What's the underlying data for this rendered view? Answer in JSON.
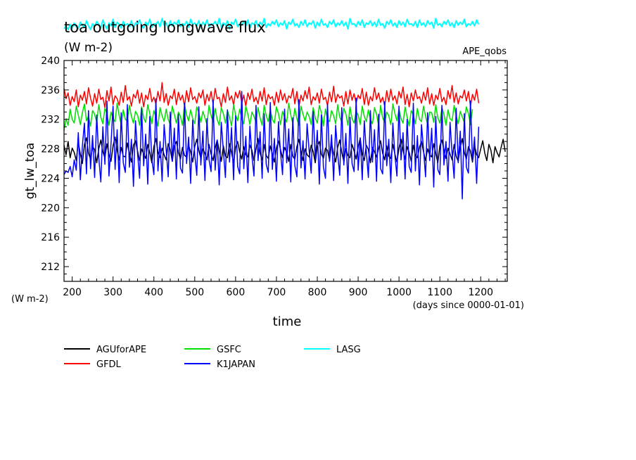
{
  "chart_data": {
    "type": "line",
    "title": "toa outgoing longwave flux",
    "units": "(W m-2)",
    "experiment": "APE_qobs",
    "ylabel": "gt_lw_toa",
    "xlabel": "time",
    "x_units": "(days since 0000-01-01)",
    "y_units_left": "(W m-2)",
    "xlim": [
      180,
      1265
    ],
    "ylim": [
      210,
      240
    ],
    "x_ticks": [
      200,
      300,
      400,
      500,
      600,
      700,
      800,
      900,
      1000,
      1100,
      1200
    ],
    "y_ticks": [
      212,
      216,
      220,
      224,
      228,
      232,
      236,
      240
    ],
    "grid": false,
    "legend_position": "below",
    "series": [
      {
        "name": "AGUforAPE",
        "color": "#000000",
        "x_start": 180,
        "x_end": 1265,
        "x_step": 5,
        "values": [
          228.5,
          227.2,
          229.0,
          226.8,
          228.1,
          227.5,
          226.4,
          228.9,
          227.3,
          226.0,
          228.6,
          229.5,
          227.4,
          226.6,
          228.3,
          227.9,
          226.1,
          228.0,
          229.2,
          227.6,
          226.8,
          228.7,
          227.2,
          226.3,
          228.4,
          229.6,
          227.8,
          226.5,
          228.2,
          227.0,
          226.9,
          228.8,
          227.4,
          226.2,
          228.5,
          229.1,
          227.7,
          226.4,
          228.0,
          227.3,
          226.7,
          228.6,
          227.5,
          226.1,
          228.3,
          229.4,
          227.6,
          226.8,
          228.1,
          227.2,
          226.5,
          228.7,
          227.9,
          226.3,
          228.4,
          229.0,
          227.5,
          226.6,
          228.2,
          227.1,
          226.9,
          228.5,
          227.6,
          226.2,
          228.3,
          229.3,
          227.8,
          226.7,
          228.0,
          227.4,
          226.5,
          228.6,
          227.3,
          226.4,
          228.1,
          229.2,
          227.7,
          226.3,
          228.4,
          227.0,
          226.8,
          228.7,
          227.5,
          226.1,
          228.2,
          229.0,
          227.6,
          226.6,
          228.3,
          227.2,
          226.9,
          228.5,
          227.8,
          226.4,
          228.0,
          229.4,
          227.4,
          226.5,
          228.6,
          227.1,
          226.7,
          228.4,
          227.3,
          226.2,
          228.1,
          229.1,
          227.9,
          226.8,
          228.2,
          227.5,
          226.3,
          228.6,
          227.0,
          226.6,
          228.3,
          229.3,
          227.7,
          226.4,
          228.0,
          227.2,
          226.9,
          228.5,
          227.6,
          226.1,
          228.4,
          229.0,
          227.3,
          226.7,
          228.1,
          227.8,
          226.5,
          228.7,
          227.4,
          226.2,
          228.2,
          229.2,
          227.5,
          226.3,
          228.0,
          227.1,
          226.8,
          228.6,
          227.7,
          226.6,
          228.3,
          229.4,
          227.2,
          226.4,
          228.5,
          227.9,
          226.1,
          228.2,
          227.6,
          226.9,
          228.0,
          229.1,
          227.4,
          226.5,
          228.4,
          227.0,
          226.7,
          228.6,
          227.3,
          226.2,
          228.1,
          229.3,
          227.8,
          226.6,
          228.3,
          227.5,
          226.3,
          228.5,
          227.1,
          226.8,
          228.2,
          229.0,
          227.6,
          226.4,
          228.0,
          227.2,
          226.9,
          228.7,
          227.4,
          226.1,
          228.4,
          229.2,
          227.9,
          226.7,
          228.1,
          227.3,
          226.5,
          228.6,
          227.0,
          226.3,
          228.2,
          229.4,
          227.5,
          226.6,
          228.3,
          227.7,
          226.2,
          228.5,
          227.2,
          226.8,
          228.0,
          229.1,
          227.4,
          226.4,
          228.6,
          227.8,
          226.1,
          228.3,
          227.5,
          226.9,
          228.2,
          229.3,
          227.6
        ]
      },
      {
        "name": "GFDL",
        "color": "#ff0000",
        "x_start": 180,
        "x_end": 1265,
        "x_step": 5,
        "values": [
          236.2,
          234.8,
          235.6,
          233.9,
          235.1,
          234.4,
          236.0,
          233.7,
          235.3,
          234.6,
          235.8,
          234.1,
          236.3,
          234.9,
          233.8,
          235.5,
          234.2,
          236.1,
          234.7,
          235.0,
          233.6,
          235.9,
          234.5,
          236.4,
          234.0,
          235.2,
          234.8,
          233.9,
          235.7,
          234.3,
          236.6,
          234.6,
          235.1,
          233.8,
          235.4,
          234.9,
          236.0,
          234.2,
          235.6,
          233.7,
          235.3,
          234.7,
          236.2,
          234.4,
          235.0,
          234.1,
          235.8,
          234.5,
          237.0,
          234.3,
          235.5,
          233.9,
          235.2,
          234.8,
          236.1,
          234.0,
          235.7,
          234.6,
          235.3,
          233.8,
          235.9,
          234.4,
          236.3,
          234.7,
          235.1,
          234.2,
          235.6,
          234.9,
          236.0,
          233.9,
          235.4,
          234.5,
          235.8,
          234.1,
          236.2,
          234.8,
          235.0,
          233.7,
          235.5,
          234.3,
          236.4,
          234.6,
          235.2,
          234.0,
          235.7,
          234.9,
          235.9,
          234.2,
          235.3,
          233.8,
          235.6,
          234.7,
          236.1,
          234.4,
          235.0,
          234.1,
          235.8,
          234.5,
          236.3,
          234.0,
          235.4,
          234.8,
          235.1,
          233.9,
          235.7,
          234.3,
          236.0,
          234.6,
          235.5,
          234.2,
          235.2,
          234.9,
          236.2,
          234.1,
          235.8,
          233.7,
          235.3,
          234.5,
          235.9,
          234.8,
          236.4,
          234.0,
          235.1,
          234.6,
          235.6,
          234.2,
          236.1,
          234.7,
          235.0,
          233.9,
          235.7,
          234.4,
          236.5,
          234.3,
          235.4,
          234.9,
          235.2,
          233.8,
          235.8,
          234.1,
          236.0,
          234.6,
          235.5,
          234.2,
          235.3,
          234.8,
          236.2,
          234.0,
          235.7,
          233.9,
          235.1,
          234.5,
          236.3,
          234.7,
          235.6,
          234.3,
          235.0,
          233.8,
          235.9,
          234.4,
          236.1,
          234.6,
          235.2,
          234.1,
          235.8,
          234.9,
          236.4,
          234.0,
          235.4,
          233.7,
          235.6,
          234.5,
          236.0,
          234.8,
          235.1,
          234.2,
          235.7,
          234.6,
          236.3,
          234.1,
          235.5,
          233.9,
          235.3,
          234.7,
          236.2,
          234.4,
          235.0,
          234.0,
          235.9,
          234.8,
          236.6,
          234.3,
          235.6,
          234.1,
          235.2,
          234.9,
          236.0,
          234.5,
          235.8,
          233.8,
          235.4,
          234.6,
          236.1,
          234.2
        ]
      },
      {
        "name": "GSFC",
        "color": "#00e000",
        "x_start": 180,
        "x_end": 1265,
        "x_step": 5,
        "values": [
          230.5,
          232.1,
          231.2,
          233.4,
          232.0,
          231.5,
          233.8,
          232.6,
          231.3,
          232.9,
          234.1,
          231.8,
          232.4,
          231.1,
          233.2,
          232.7,
          231.6,
          234.0,
          232.3,
          231.4,
          233.5,
          232.8,
          231.2,
          233.0,
          232.1,
          231.7,
          234.2,
          232.5,
          231.3,
          233.3,
          232.0,
          231.8,
          233.9,
          232.4,
          231.5,
          233.1,
          232.6,
          231.2,
          233.7,
          232.2,
          231.6,
          234.0,
          232.8,
          231.4,
          233.2,
          232.3,
          231.1,
          233.6,
          232.5,
          231.7,
          233.4,
          232.0,
          231.3,
          233.8,
          232.7,
          231.5,
          233.0,
          232.4,
          231.2,
          234.1,
          232.6,
          231.8,
          233.3,
          232.1,
          231.4,
          233.7,
          232.9,
          231.6,
          233.1,
          232.2,
          231.3,
          233.9,
          232.5,
          231.7,
          233.5,
          232.0,
          231.2,
          233.6,
          232.8,
          231.5,
          233.2,
          232.3,
          231.1,
          234.0,
          232.6,
          231.8,
          233.4,
          232.1,
          231.4,
          233.8,
          232.7,
          231.3,
          233.0,
          232.4,
          231.6,
          233.6,
          232.2,
          231.2,
          233.9,
          232.5,
          231.7,
          233.3,
          232.0,
          231.5,
          233.7,
          232.8,
          231.3,
          233.1,
          232.3,
          231.6,
          234.2,
          232.6,
          231.4,
          233.5,
          232.1,
          231.2,
          233.8,
          232.7,
          231.8,
          233.0,
          232.4,
          231.3,
          233.6,
          232.2,
          231.5,
          233.9,
          232.9,
          231.1,
          233.4,
          232.0,
          231.7,
          233.2,
          232.5,
          231.4,
          234.0,
          232.3,
          231.6,
          233.5,
          232.8,
          231.2,
          233.7,
          232.1,
          231.5,
          233.1,
          232.6,
          231.3,
          233.8,
          232.4,
          231.7,
          233.3,
          232.0,
          231.4,
          233.6,
          232.7,
          231.2,
          233.9,
          232.2,
          231.6,
          233.0,
          232.5,
          231.3,
          234.1,
          232.8,
          231.8,
          233.4,
          232.1,
          231.5,
          233.7,
          232.3,
          231.1,
          233.2,
          232.6,
          231.4,
          233.5,
          232.0,
          231.7,
          233.8,
          232.4,
          231.3,
          233.0,
          232.9,
          231.6,
          234.0,
          232.2,
          231.5,
          233.6,
          232.7,
          231.2,
          233.3,
          232.1,
          231.8,
          233.9,
          232.5,
          231.4,
          233.1,
          232.3,
          231.6,
          233.7,
          232.8,
          231.3,
          233.4
        ]
      },
      {
        "name": "K1JAPAN",
        "color": "#0000ff",
        "x_start": 180,
        "x_end": 1265,
        "x_step": 5,
        "values": [
          224.5,
          225.0,
          224.8,
          225.6,
          224.2,
          226.5,
          225.1,
          230.2,
          223.8,
          228.4,
          231.5,
          224.6,
          233.2,
          225.3,
          229.8,
          224.1,
          232.6,
          226.8,
          223.5,
          231.0,
          225.9,
          234.5,
          224.3,
          228.7,
          233.8,
          225.2,
          230.6,
          223.4,
          232.9,
          226.1,
          224.8,
          234.0,
          225.5,
          229.3,
          222.9,
          231.8,
          227.4,
          224.0,
          233.5,
          225.7,
          230.0,
          223.2,
          232.4,
          226.6,
          224.5,
          234.8,
          225.0,
          229.0,
          223.6,
          231.3,
          227.9,
          224.2,
          233.0,
          226.3,
          230.8,
          223.9,
          232.7,
          225.4,
          224.7,
          234.2,
          226.0,
          229.6,
          223.3,
          231.9,
          227.2,
          224.4,
          233.7,
          225.8,
          230.4,
          223.7,
          232.1,
          226.5,
          224.9,
          234.6,
          225.1,
          229.2,
          223.1,
          231.6,
          227.7,
          224.1,
          233.3,
          226.2,
          230.9,
          223.8,
          232.5,
          225.6,
          224.6,
          235.8,
          225.3,
          229.7,
          223.4,
          231.1,
          227.0,
          224.3,
          233.9,
          226.4,
          230.3,
          224.0,
          232.8,
          225.9,
          224.8,
          234.3,
          225.2,
          229.4,
          223.6,
          231.7,
          227.5,
          224.5,
          233.4,
          226.1,
          230.7,
          223.5,
          232.2,
          225.7,
          224.2,
          234.7,
          225.4,
          229.1,
          223.9,
          231.4,
          227.8,
          224.7,
          233.1,
          226.6,
          230.5,
          223.2,
          232.6,
          225.5,
          224.0,
          234.1,
          226.3,
          229.9,
          223.7,
          231.2,
          227.3,
          224.4,
          233.6,
          225.8,
          230.1,
          223.3,
          232.3,
          226.0,
          224.9,
          234.9,
          225.1,
          229.5,
          223.8,
          231.8,
          227.6,
          224.1,
          233.2,
          226.2,
          230.6,
          223.6,
          232.7,
          225.3,
          224.6,
          234.4,
          225.7,
          229.3,
          223.4,
          231.5,
          227.1,
          224.3,
          233.8,
          226.5,
          230.2,
          223.9,
          232.0,
          225.6,
          224.8,
          234.2,
          225.0,
          229.8,
          223.1,
          231.3,
          227.9,
          224.2,
          232.9,
          226.4,
          230.8,
          222.8,
          232.4,
          225.2,
          224.5,
          233.9,
          225.8,
          229.0,
          223.6,
          231.6,
          227.4,
          224.0,
          233.5,
          226.1,
          230.4,
          221.2,
          232.8,
          225.5,
          224.7,
          234.5,
          226.3,
          229.6,
          223.3,
          231.0
        ]
      },
      {
        "name": "LASG",
        "color": "#00ffff",
        "x_start": 180,
        "x_end": 1265,
        "x_step": 5,
        "values": [
          244.3,
          244.7,
          244.2,
          244.9,
          244.4,
          245.1,
          244.6,
          244.3,
          245.2,
          244.8,
          244.5,
          245.4,
          244.7,
          244.2,
          245.0,
          244.6,
          245.3,
          244.9,
          244.4,
          245.5,
          244.8,
          244.3,
          245.1,
          244.7,
          245.6,
          244.5,
          245.2,
          244.9,
          244.4,
          245.3,
          244.8,
          245.0,
          244.6,
          245.4,
          244.3,
          245.1,
          244.9,
          245.5,
          244.7,
          244.4,
          245.2,
          244.8,
          245.6,
          244.5,
          245.0,
          244.9,
          245.3,
          244.6,
          245.7,
          244.8,
          245.1,
          244.4,
          245.4,
          244.7,
          245.2,
          244.9,
          245.5,
          244.6,
          245.0,
          244.8,
          245.3,
          244.5,
          245.6,
          244.9,
          245.1,
          244.7,
          245.4,
          244.4,
          245.2,
          244.8,
          245.5,
          244.6,
          245.0,
          244.9,
          245.3,
          244.7,
          245.7,
          244.5,
          245.1,
          244.8,
          245.4,
          244.3,
          245.2,
          244.9,
          245.6,
          244.6,
          245.0,
          244.8,
          245.3,
          244.7,
          245.5,
          244.4,
          245.1,
          244.9,
          245.4,
          244.6,
          245.2,
          244.8,
          245.7,
          244.5,
          245.0,
          244.7,
          245.3,
          244.9,
          245.5,
          244.6,
          245.1,
          244.8,
          245.4,
          244.3,
          245.2,
          244.9,
          245.6,
          244.7,
          245.0,
          244.5,
          245.3,
          244.8,
          245.5,
          244.6,
          245.1,
          244.9,
          245.4,
          244.4,
          245.2,
          244.7,
          245.6,
          244.8,
          245.0,
          244.5,
          245.3,
          244.9,
          245.5,
          244.6,
          245.1,
          244.8,
          245.4,
          244.7,
          245.2,
          244.3,
          245.7,
          244.9,
          245.0,
          244.6,
          245.3,
          244.8,
          245.5,
          244.5,
          245.1,
          244.9,
          245.4,
          244.7,
          245.2,
          244.6,
          245.6,
          244.8,
          245.0,
          244.4,
          245.3,
          244.9,
          245.5,
          244.7,
          245.1,
          244.5,
          245.4,
          244.8,
          245.2,
          244.6,
          245.6,
          244.9,
          245.0,
          244.7,
          245.3,
          244.5,
          245.5,
          244.8,
          245.1,
          244.6,
          245.4,
          244.9,
          245.2,
          244.4,
          245.7,
          244.8,
          245.0,
          244.6,
          245.3,
          244.9,
          245.5,
          244.7,
          245.1,
          244.5,
          245.4,
          244.8,
          245.2,
          244.9,
          245.6,
          244.6,
          245.0,
          244.8,
          245.3,
          244.7,
          245.5,
          244.9
        ]
      }
    ]
  }
}
